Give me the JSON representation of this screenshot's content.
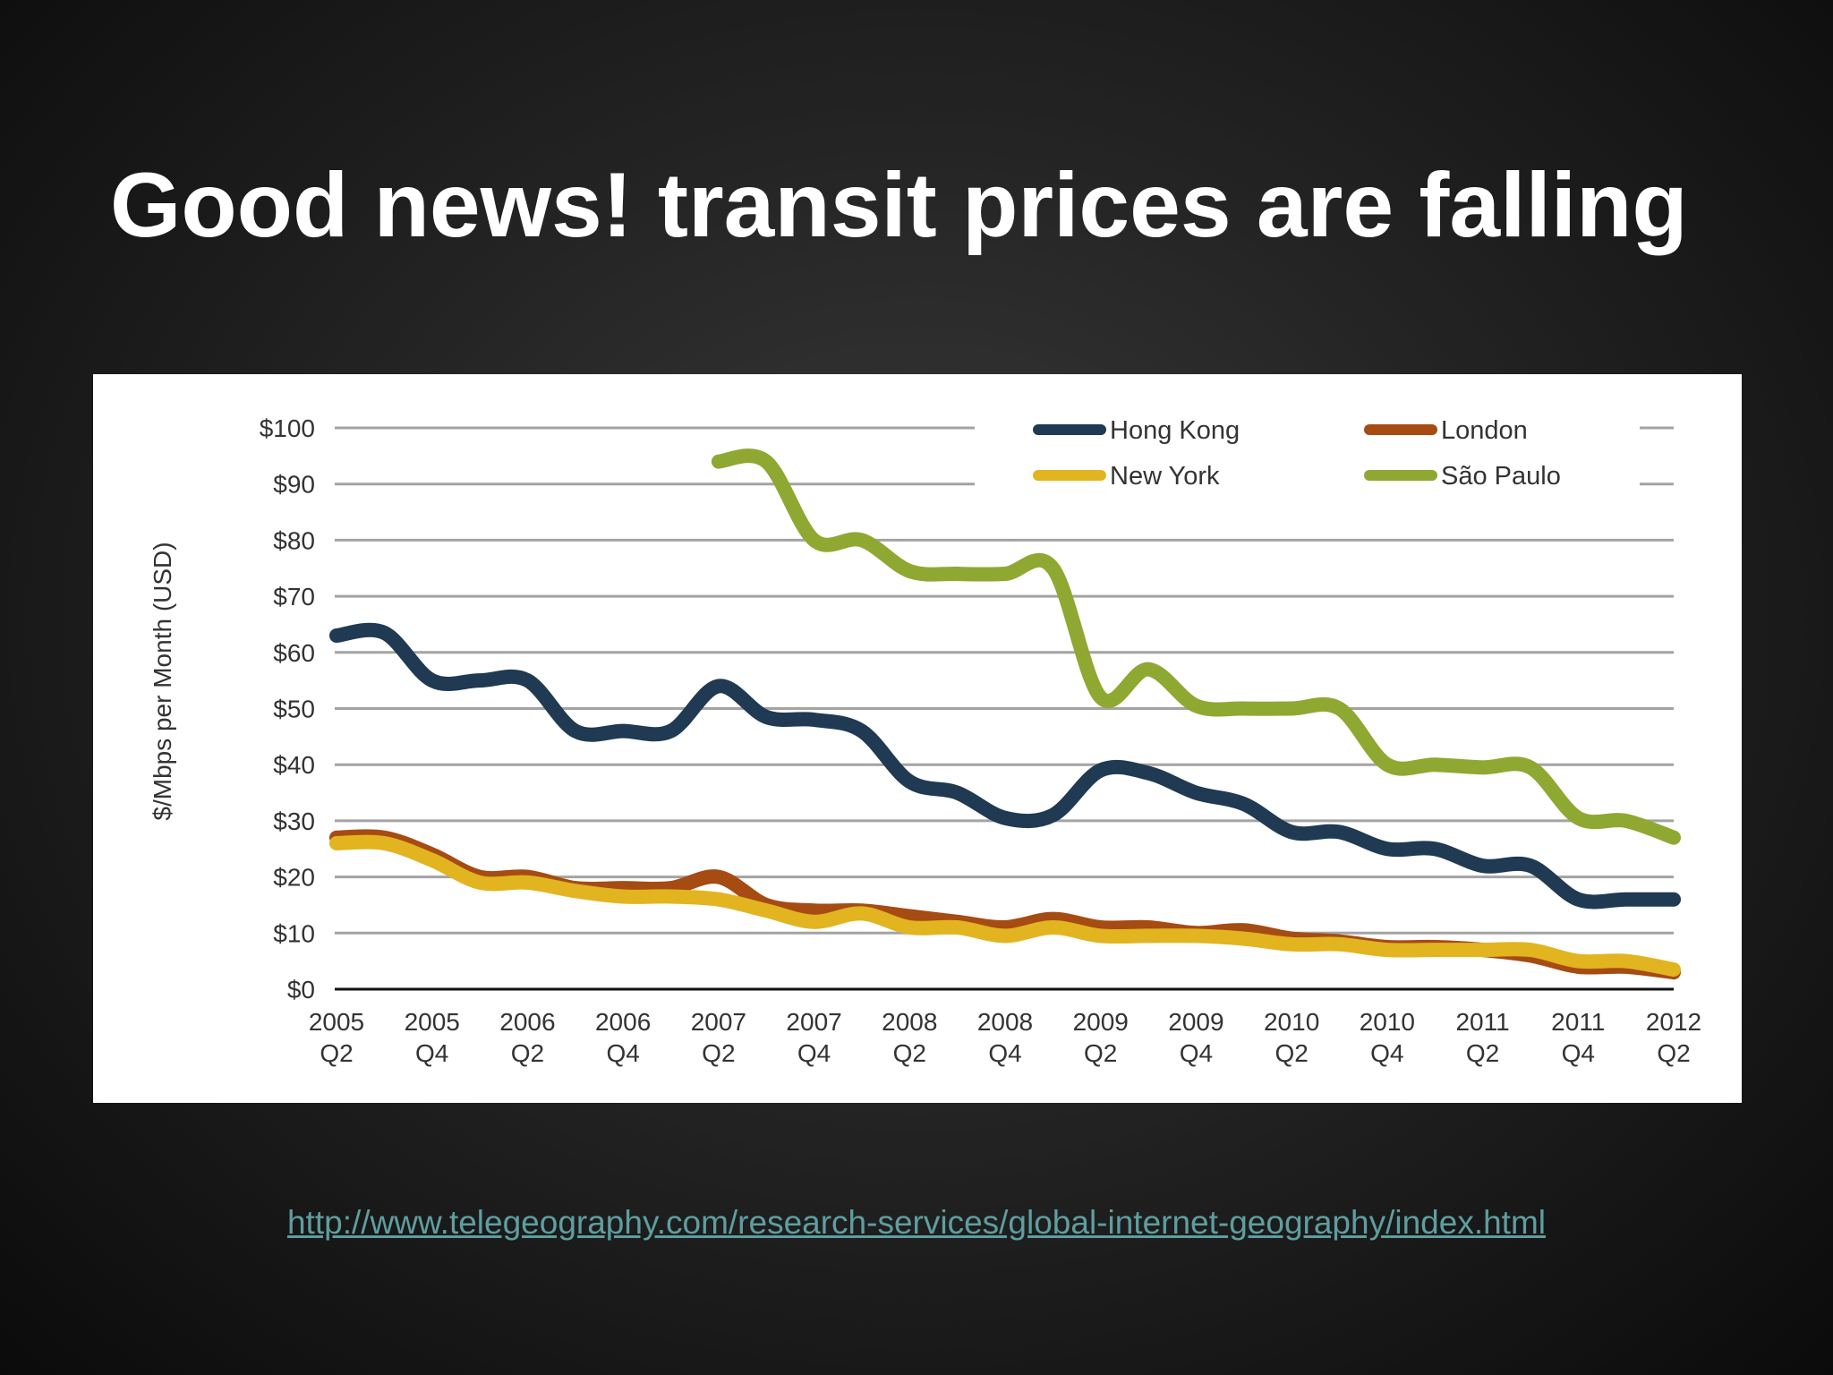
{
  "slide": {
    "title": "Good news! transit prices are falling",
    "source_link": "http://www.telegeography.com/research-services/global-internet-geography/index.html"
  },
  "chart_data": {
    "type": "line",
    "title": "",
    "xlabel": "",
    "ylabel": "$/Mbps per Month (USD)",
    "ylim": [
      0,
      100
    ],
    "yticks": [
      {
        "value": 0,
        "label": "$0"
      },
      {
        "value": 10,
        "label": "$10"
      },
      {
        "value": 20,
        "label": "$20"
      },
      {
        "value": 30,
        "label": "$30"
      },
      {
        "value": 40,
        "label": "$40"
      },
      {
        "value": 50,
        "label": "$50"
      },
      {
        "value": 60,
        "label": "$60"
      },
      {
        "value": 70,
        "label": "$70"
      },
      {
        "value": 80,
        "label": "$80"
      },
      {
        "value": 90,
        "label": "$90"
      },
      {
        "value": 100,
        "label": "$100"
      }
    ],
    "x": [
      "2005 Q2",
      "2005 Q3",
      "2005 Q4",
      "2006 Q1",
      "2006 Q2",
      "2006 Q3",
      "2006 Q4",
      "2007 Q1",
      "2007 Q2",
      "2007 Q3",
      "2007 Q4",
      "2008 Q1",
      "2008 Q2",
      "2008 Q3",
      "2008 Q4",
      "2009 Q1",
      "2009 Q2",
      "2009 Q3",
      "2009 Q4",
      "2010 Q1",
      "2010 Q2",
      "2010 Q3",
      "2010 Q4",
      "2011 Q1",
      "2011 Q2",
      "2011 Q3",
      "2011 Q4",
      "2012 Q1",
      "2012 Q2"
    ],
    "xticks": [
      {
        "x": "2005 Q2",
        "line1": "2005",
        "line2": "Q2"
      },
      {
        "x": "2005 Q4",
        "line1": "2005",
        "line2": "Q4"
      },
      {
        "x": "2006 Q2",
        "line1": "2006",
        "line2": "Q2"
      },
      {
        "x": "2006 Q4",
        "line1": "2006",
        "line2": "Q4"
      },
      {
        "x": "2007 Q2",
        "line1": "2007",
        "line2": "Q2"
      },
      {
        "x": "2007 Q4",
        "line1": "2007",
        "line2": "Q4"
      },
      {
        "x": "2008 Q2",
        "line1": "2008",
        "line2": "Q2"
      },
      {
        "x": "2008 Q4",
        "line1": "2008",
        "line2": "Q4"
      },
      {
        "x": "2009 Q2",
        "line1": "2009",
        "line2": "Q2"
      },
      {
        "x": "2009 Q4",
        "line1": "2009",
        "line2": "Q4"
      },
      {
        "x": "2010 Q2",
        "line1": "2010",
        "line2": "Q2"
      },
      {
        "x": "2010 Q4",
        "line1": "2010",
        "line2": "Q4"
      },
      {
        "x": "2011 Q2",
        "line1": "2011",
        "line2": "Q2"
      },
      {
        "x": "2011 Q4",
        "line1": "2011",
        "line2": "Q4"
      },
      {
        "x": "2012 Q2",
        "line1": "2012",
        "line2": "Q2"
      }
    ],
    "grid": true,
    "legend_position": "top-right",
    "series": [
      {
        "name": "Hong Kong",
        "color": "#1f3a52",
        "values": [
          63,
          63.5,
          55,
          55,
          55,
          46,
          46,
          46,
          54,
          48.5,
          48,
          46,
          37,
          35,
          30.5,
          31,
          39,
          38.5,
          35,
          33,
          28,
          28,
          25,
          25,
          22,
          22,
          16,
          16,
          16
        ]
      },
      {
        "name": "London",
        "color": "#a64b12",
        "values": [
          27,
          27,
          24,
          20,
          20,
          18,
          18,
          18,
          20,
          15,
          14,
          14,
          13,
          12,
          11,
          12.5,
          11,
          11,
          10,
          10.5,
          9,
          8.5,
          7.5,
          7.5,
          7,
          6,
          4,
          4,
          3
        ]
      },
      {
        "name": "New York",
        "color": "#e2b420",
        "values": [
          26,
          26,
          23,
          19,
          19,
          17.5,
          16.5,
          16.5,
          16,
          14,
          12,
          13.5,
          11,
          11,
          9.5,
          11,
          9.5,
          9.5,
          9.5,
          9,
          8,
          8,
          7,
          7,
          7,
          7,
          5,
          5,
          3.5
        ]
      },
      {
        "name": "São Paulo",
        "color": "#8fa832",
        "values": [
          null,
          null,
          null,
          null,
          null,
          null,
          null,
          null,
          94,
          94,
          80,
          80,
          74.5,
          74,
          74,
          75,
          52,
          57,
          50.5,
          50,
          50,
          50,
          40,
          40,
          39.5,
          39.5,
          30.5,
          30,
          27
        ]
      }
    ]
  }
}
